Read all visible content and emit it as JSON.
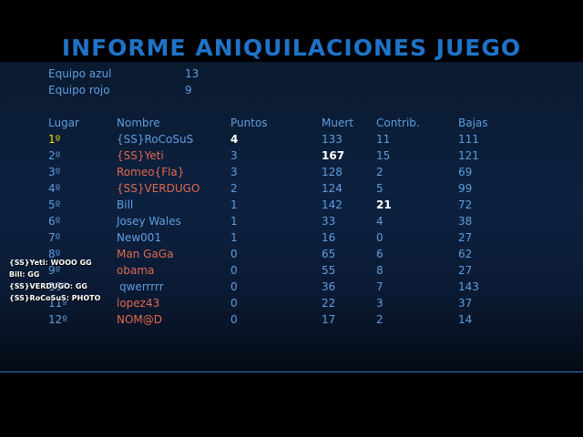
{
  "title": "INFORME ANIQUILACIONES JUEGO",
  "teams": [
    {
      "label": "Equipo azul",
      "score": "13"
    },
    {
      "label": "Equipo rojo",
      "score": "9"
    }
  ],
  "columns": {
    "lugar": "Lugar",
    "nombre": "Nombre",
    "puntos": "Puntos",
    "muert": "Muert",
    "contrib": "Contrib.",
    "bajas": "Bajas"
  },
  "rows": [
    {
      "lugar": "1º",
      "nombre": "{SS}RoCoSuS",
      "puntos": "4",
      "muert": "133",
      "contrib": "11",
      "bajas": "111",
      "team": "blue"
    },
    {
      "lugar": "2º",
      "nombre": "{SS}Yeti",
      "puntos": "3",
      "muert": "167",
      "contrib": "15",
      "bajas": "121",
      "team": "red"
    },
    {
      "lugar": "3º",
      "nombre": "Romeo{Fla}",
      "puntos": "3",
      "muert": "128",
      "contrib": "2",
      "bajas": "69",
      "team": "red"
    },
    {
      "lugar": "4º",
      "nombre": "{SS}VERDUGO",
      "puntos": "2",
      "muert": "124",
      "contrib": "5",
      "bajas": "99",
      "team": "red"
    },
    {
      "lugar": "5º",
      "nombre": "Bill",
      "puntos": "1",
      "muert": "142",
      "contrib": "21",
      "bajas": "72",
      "team": "blue"
    },
    {
      "lugar": "6º",
      "nombre": "Josey Wales",
      "puntos": "1",
      "muert": "33",
      "contrib": "4",
      "bajas": "38",
      "team": "blue"
    },
    {
      "lugar": "7º",
      "nombre": "New001",
      "puntos": "1",
      "muert": "16",
      "contrib": "0",
      "bajas": "27",
      "team": "blue"
    },
    {
      "lugar": "8º",
      "nombre": "Man GaGa",
      "puntos": "0",
      "muert": "65",
      "contrib": "6",
      "bajas": "62",
      "team": "red"
    },
    {
      "lugar": "9º",
      "nombre": "obama",
      "puntos": "0",
      "muert": "55",
      "contrib": "8",
      "bajas": "27",
      "team": "red"
    },
    {
      "lugar": "10º",
      "nombre": "qwerrrrr",
      "puntos": "0",
      "muert": "36",
      "contrib": "7",
      "bajas": "143",
      "team": "blue"
    },
    {
      "lugar": "11º",
      "nombre": "lopez43",
      "puntos": "0",
      "muert": "22",
      "contrib": "3",
      "bajas": "37",
      "team": "red"
    },
    {
      "lugar": "12º",
      "nombre": "NOM@D",
      "puntos": "0",
      "muert": "17",
      "contrib": "2",
      "bajas": "14",
      "team": "red"
    }
  ],
  "chat": [
    "{SS}Yeti: WOOO GG",
    "Bill: GG",
    "{SS}VERDUGO: GG",
    "{SS}RoCoSuS: PHOTO"
  ],
  "colors": {
    "team_blue": "#5f9de0",
    "team_red": "#e0694f",
    "first_place": "#f0e000",
    "title": "#1f73c8"
  }
}
